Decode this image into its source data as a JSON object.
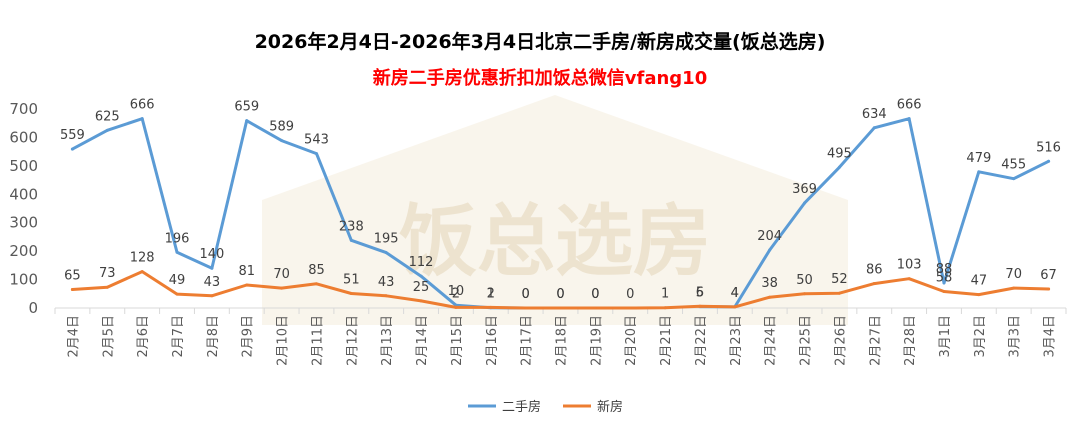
{
  "chart_data": {
    "type": "line",
    "title": "2026年2月4日-2026年3月4日北京二手房/新房成交量(饭总选房)",
    "subtitle": "新房二手房优惠折扣加饭总微信vfang10",
    "watermark": "饭总选房",
    "categories": [
      "2月4日",
      "2月5日",
      "2月6日",
      "2月7日",
      "2月8日",
      "2月9日",
      "2月10日",
      "2月11日",
      "2月12日",
      "2月13日",
      "2月14日",
      "2月15日",
      "2月16日",
      "2月17日",
      "2月18日",
      "2月19日",
      "2月20日",
      "2月21日",
      "2月22日",
      "2月23日",
      "2月24日",
      "2月25日",
      "2月26日",
      "2月27日",
      "2月28日",
      "3月1日",
      "3月2日",
      "3月3日",
      "3月4日"
    ],
    "series": [
      {
        "name": "二手房",
        "color": "#5b9bd5",
        "values": [
          559,
          625,
          666,
          196,
          140,
          659,
          589,
          543,
          238,
          195,
          112,
          10,
          1,
          0,
          0,
          0,
          null,
          null,
          5,
          4,
          204,
          369,
          495,
          634,
          666,
          88,
          479,
          455,
          516
        ],
        "labels": [
          "559",
          "625",
          "666",
          "196",
          "140",
          "659",
          "589",
          "543",
          "238",
          "195",
          "112",
          "10",
          "1",
          "0",
          "0",
          "0",
          "",
          "",
          "5",
          "4",
          "204",
          "369",
          "495",
          "634",
          "666",
          "88",
          "479",
          "455",
          "516"
        ]
      },
      {
        "name": "新房",
        "color": "#ed7d31",
        "values": [
          65,
          73,
          128,
          49,
          43,
          81,
          70,
          85,
          51,
          43,
          25,
          2,
          2,
          0,
          0,
          0,
          0,
          1,
          6,
          4,
          38,
          50,
          52,
          86,
          103,
          58,
          47,
          70,
          67
        ],
        "labels": [
          "65",
          "73",
          "128",
          "49",
          "43",
          "81",
          "70",
          "85",
          "51",
          "43",
          "25",
          "2",
          "2",
          "0",
          "0",
          "0",
          "0",
          "1",
          "6",
          "4",
          "38",
          "50",
          "52",
          "86",
          "103",
          "58",
          "47",
          "70",
          "67"
        ]
      }
    ],
    "y_ticks": [
      "0",
      "100",
      "200",
      "300",
      "400",
      "500",
      "600",
      "700"
    ],
    "ylim": [
      0,
      700
    ],
    "grid": false,
    "legend_position": "bottom"
  },
  "colors": {
    "subtitle": "#ff0000",
    "axis": "#d9d9d9"
  }
}
